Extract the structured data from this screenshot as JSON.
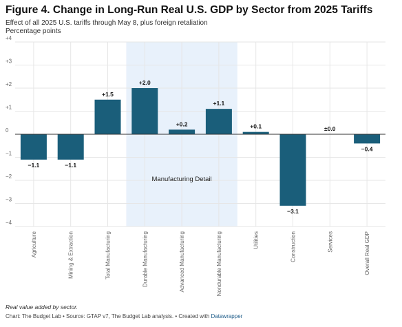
{
  "title": "Figure 4. Change in Long-Run Real U.S. GDP by Sector from 2025 Tariffs",
  "subtitle": "Effect of all 2025 U.S. tariffs through May 8, plus foreign retaliation",
  "units_label": "Percentage points",
  "footer": {
    "note": "Real value added by sector.",
    "credit_prefix": "Chart: The Budget Lab • Source: GTAP v7, The Budget Lab analysis. • Created with ",
    "credit_tool": "Datawrapper"
  },
  "colors": {
    "bar": "#1a5e7a",
    "highlight": "#e8f1fb",
    "grid": "#e6e6e6",
    "zero": "#333333"
  },
  "chart_data": {
    "type": "bar",
    "categories": [
      "Agriculture",
      "Mining & Extraction",
      "Total Manufacturing",
      "Durable Manufacturing",
      "Advanced Manufacturing",
      "Nondurable Manufacturing",
      "Utilities",
      "Construction",
      "Services",
      "Overall Real GDP"
    ],
    "values": [
      -1.1,
      -1.1,
      1.5,
      2.0,
      0.2,
      1.1,
      0.1,
      -3.1,
      0.0,
      -0.4
    ],
    "value_labels": [
      "−1.1",
      "−1.1",
      "+1.5",
      "+2.0",
      "+0.2",
      "+1.1",
      "+0.1",
      "−3.1",
      "±0.0",
      "−0.4"
    ],
    "yticks": [
      4,
      3,
      2,
      1,
      0,
      -1,
      -2,
      -3,
      -4
    ],
    "ytick_labels": [
      "+4",
      "+3",
      "+2",
      "+1",
      "0",
      "−1",
      "−2",
      "−3",
      "−4"
    ],
    "ylim": [
      -4,
      4
    ],
    "grid": true,
    "highlight": {
      "label": "Manufacturing Detail",
      "from_category": "Durable Manufacturing",
      "to_category": "Nondurable Manufacturing"
    }
  }
}
